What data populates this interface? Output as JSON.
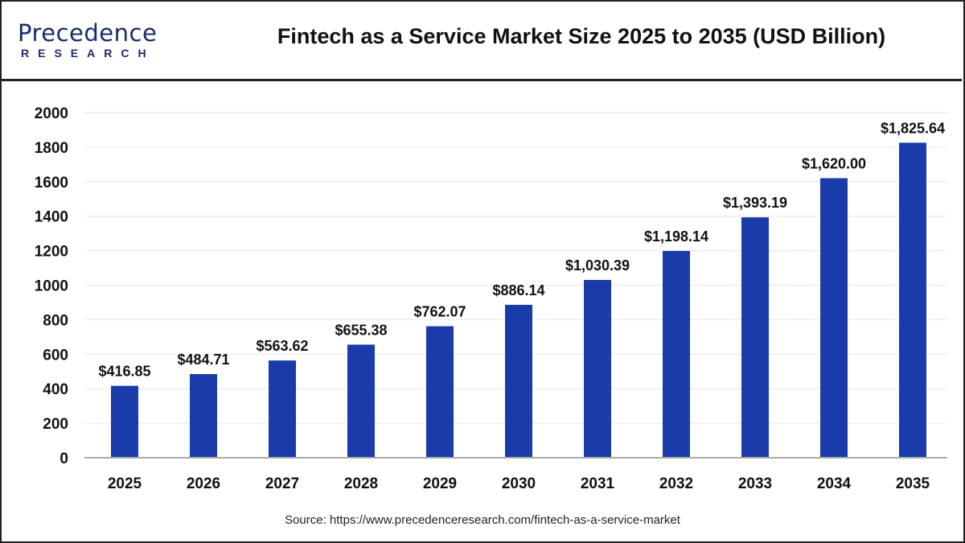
{
  "header": {
    "logo_text": "Precedence",
    "logo_subtext": "RESEARCH",
    "title": "Fintech as a Service Market Size 2025 to 2035 (USD Billion)"
  },
  "source": "Source: https://www.precedenceresearch.com/fintech-as-a-service-market",
  "chart_data": {
    "type": "bar",
    "title": "Fintech as a Service Market Size 2025 to 2035 (USD Billion)",
    "xlabel": "",
    "ylabel": "",
    "ylim": [
      0,
      2000
    ],
    "yticks": [
      0,
      200,
      400,
      600,
      800,
      1000,
      1200,
      1400,
      1600,
      1800,
      2000
    ],
    "grid": true,
    "bar_color": "#1a3caa",
    "categories": [
      "2025",
      "2026",
      "2027",
      "2028",
      "2029",
      "2030",
      "2031",
      "2032",
      "2033",
      "2034",
      "2035"
    ],
    "values": [
      416.85,
      484.71,
      563.62,
      655.38,
      762.07,
      886.14,
      1030.39,
      1198.14,
      1393.19,
      1620.0,
      1825.64
    ],
    "data_labels": [
      "$416.85",
      "$484.71",
      "$563.62",
      "$655.38",
      "$762.07",
      "$886.14",
      "$1,030.39",
      "$1,198.14",
      "$1,393.19",
      "$1,620.00",
      "$1,825.64"
    ]
  }
}
